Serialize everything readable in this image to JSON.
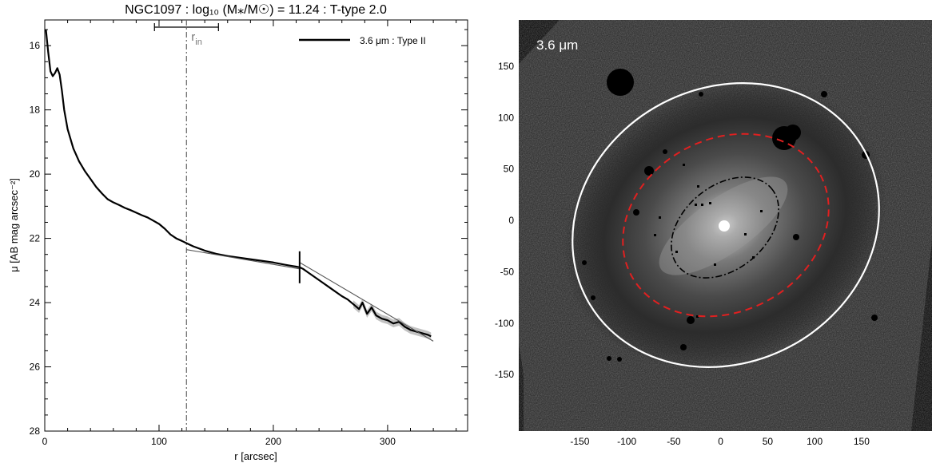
{
  "chart_data": [
    {
      "type": "line",
      "title": "NGC1097 : log₁₀ (M⁎/M☉) = 11.24 : T-type 2.0",
      "xlabel": "r [arcsec]",
      "ylabel": "μ [AB mag arcsec⁻²]",
      "xlim": [
        0,
        370
      ],
      "ylim": [
        28,
        15.2
      ],
      "y_inverted": true,
      "xticks": [
        0,
        100,
        200,
        300
      ],
      "yticks": [
        16,
        18,
        20,
        22,
        24,
        26,
        28
      ],
      "legend": {
        "label": "3.6 μm : Type II",
        "placement": "top-right"
      },
      "annotations": {
        "r_in_label": "r",
        "r_in_subscript": "in",
        "r_in_value": 124,
        "r_in_range": [
          96,
          152
        ],
        "break_radius": 223
      },
      "series": [
        {
          "name": "3.6 μm : Type II",
          "color": "#000000",
          "x": [
            1,
            3,
            5,
            7,
            9,
            11,
            13,
            15,
            17,
            20,
            25,
            30,
            35,
            40,
            45,
            50,
            55,
            60,
            65,
            70,
            75,
            80,
            85,
            90,
            95,
            100,
            105,
            110,
            115,
            120,
            124,
            130,
            140,
            150,
            160,
            170,
            180,
            190,
            200,
            210,
            215,
            220,
            223,
            226,
            230,
            240,
            250,
            260,
            265,
            270,
            275,
            278,
            282,
            286,
            290,
            295,
            300,
            305,
            310,
            315,
            320,
            325,
            330,
            335,
            338
          ],
          "y": [
            15.5,
            16.2,
            16.8,
            16.95,
            16.85,
            16.7,
            16.9,
            17.4,
            18.0,
            18.6,
            19.2,
            19.6,
            19.9,
            20.15,
            20.4,
            20.6,
            20.78,
            20.88,
            20.96,
            21.05,
            21.12,
            21.2,
            21.28,
            21.35,
            21.45,
            21.55,
            21.7,
            21.88,
            22.0,
            22.08,
            22.15,
            22.25,
            22.38,
            22.48,
            22.55,
            22.6,
            22.65,
            22.7,
            22.75,
            22.82,
            22.85,
            22.88,
            22.9,
            22.95,
            23.05,
            23.3,
            23.55,
            23.8,
            23.9,
            24.05,
            24.2,
            24.0,
            24.35,
            24.15,
            24.4,
            24.5,
            24.55,
            24.65,
            24.6,
            24.75,
            24.85,
            24.9,
            24.95,
            25.0,
            25.05
          ]
        },
        {
          "name": "",
          "color": "#555555",
          "x": [
            124,
            223
          ],
          "y": [
            22.35,
            22.95
          ]
        },
        {
          "name": "",
          "color": "#555555",
          "x": [
            223,
            340
          ],
          "y": [
            22.75,
            25.2
          ]
        }
      ]
    },
    {
      "type": "other",
      "image_label": "3.6 μm",
      "axis": "arcsec",
      "xlim": [
        -215,
        225
      ],
      "ylim": [
        -205,
        195
      ],
      "xticks": [
        "-150",
        "-100",
        "-50",
        "0",
        "50",
        "100",
        "150"
      ],
      "yticks": [
        "150",
        "100",
        "50",
        "0",
        "-50",
        "-100",
        "-150"
      ],
      "ellipses": [
        {
          "name": "outer",
          "color": "#ffffff",
          "style": "solid"
        },
        {
          "name": "middle",
          "color": "#e02020",
          "style": "dashed"
        },
        {
          "name": "inner",
          "color": "#000000",
          "style": "dash-dot"
        }
      ]
    }
  ]
}
